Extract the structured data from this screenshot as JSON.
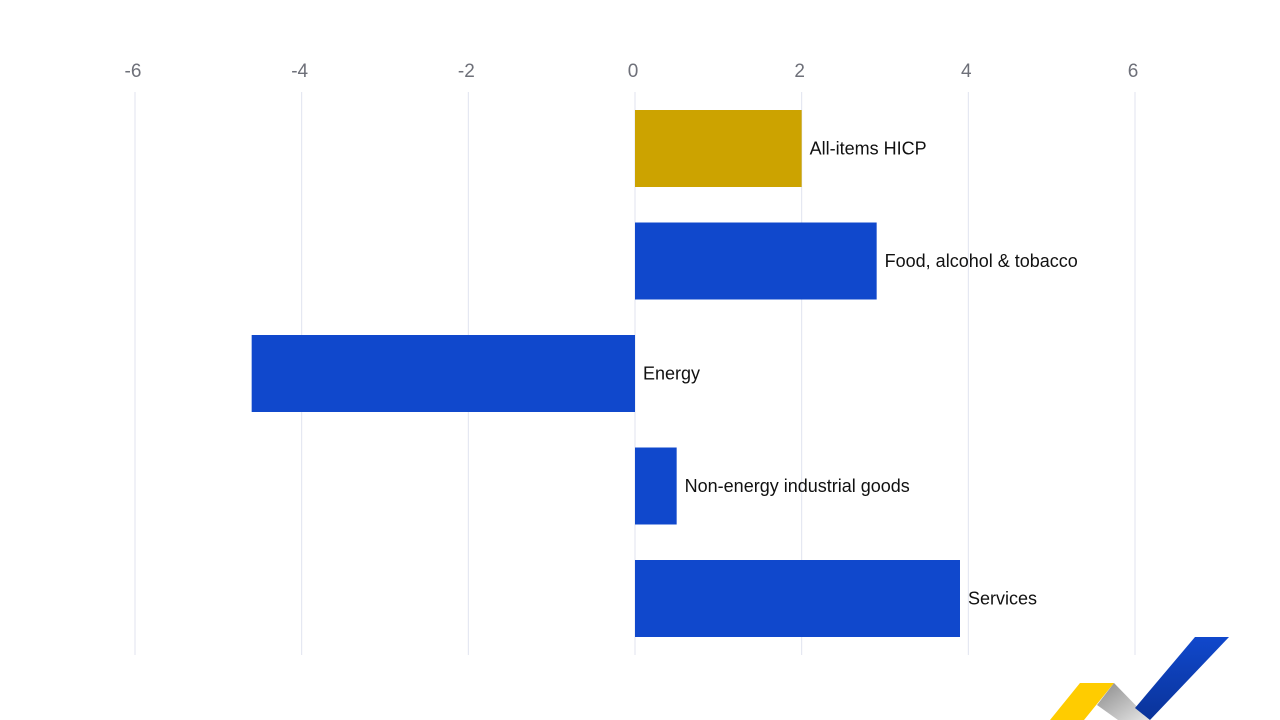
{
  "chart_data": {
    "type": "bar",
    "orientation": "horizontal",
    "title": "",
    "xlabel": "",
    "ylabel": "",
    "xlim": [
      -6,
      6
    ],
    "x_ticks": [
      -6,
      -4,
      -2,
      0,
      2,
      4,
      6
    ],
    "x_tick_labels": [
      "-6",
      "-4",
      "-2",
      "0",
      "2",
      "4",
      "6"
    ],
    "x_axis_position": "top",
    "grid": true,
    "categories": [
      "All-items HICP",
      "Food, alcohol & tobacco",
      "Energy",
      "Non-energy industrial goods",
      "Services"
    ],
    "values": [
      2.0,
      2.9,
      -4.6,
      0.5,
      3.9
    ],
    "colors": [
      "#cca300",
      "#1048cc",
      "#1048cc",
      "#1048cc",
      "#1048cc"
    ]
  }
}
